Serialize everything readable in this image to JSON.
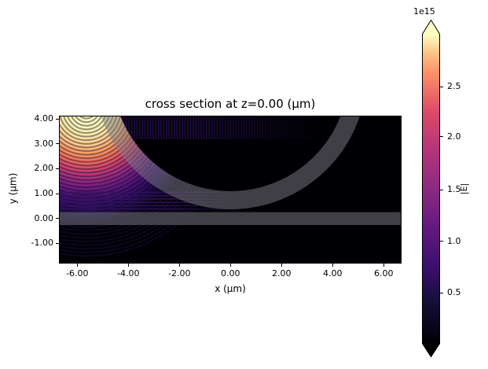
{
  "figure": {
    "background": "#ffffff"
  },
  "title": "cross section at z=0.00 (μm)",
  "axes": {
    "xlabel": "x (μm)",
    "ylabel": "y (μm)",
    "xtick_labels": [
      "-6.00",
      "-4.00",
      "-2.00",
      "0.00",
      "2.00",
      "4.00",
      "6.00"
    ],
    "ytick_labels": [
      "4.00",
      "3.00",
      "2.00",
      "1.00",
      "0.00",
      "-1.00"
    ]
  },
  "colorbar": {
    "offset_label": "1e15",
    "label": "|E|",
    "tick_labels": [
      "2.5",
      "2.0",
      "1.5",
      "1.0",
      "0.5"
    ],
    "colormap": "magma",
    "extend": "both"
  },
  "colors": {
    "background_field": "#000004",
    "structure_overlay_gray": "#3a3a3e",
    "field_peak": "#fcfdbf",
    "field_mid": "#8c2981",
    "field_low": "#140e36"
  },
  "chart_data": {
    "type": "heatmap",
    "title": "cross section at z=0.00 (μm)",
    "xlabel": "x (μm)",
    "ylabel": "y (μm)",
    "xlim": [
      -6.72,
      6.7
    ],
    "ylim": [
      -1.81,
      4.06
    ],
    "xticks": [
      -6.0,
      -4.0,
      -2.0,
      0.0,
      2.0,
      4.0,
      6.0
    ],
    "yticks": [
      4.0,
      3.0,
      2.0,
      1.0,
      0.0,
      -1.0
    ],
    "grid": false,
    "legend": false,
    "value_label": "|E|",
    "colormap": "magma",
    "colorbar": {
      "position": "right",
      "ticks_1e15": [
        0.5,
        1.0,
        1.5,
        2.0,
        2.5
      ],
      "offset_text": "1e15",
      "vmin": 0,
      "vmax": 3000000000000000.0,
      "extend": "both"
    },
    "field_description": "Electric field magnitude |E| on magma colormap; intense radiating source with concentric interference fringes in the upper-left corner (~3e15 peak, saturated cream), decaying through orange/magenta/purple arcs to near-zero (black) across the rest of the domain; faint vertical standing-wave stripes along the top edge inside the ring and faint horizontal stripes just above the slab on the left.",
    "source": {
      "x_um": -5.6,
      "y_um": 4.2,
      "fringe_spacing_um": 0.14,
      "peak_1e15": 3.0
    },
    "structures": [
      {
        "shape": "ring",
        "center_x_um": 0.0,
        "center_y_um": 5.7,
        "inner_radius_um": 4.63,
        "outer_radius_um": 5.34,
        "style": "semi-transparent gray overlay"
      },
      {
        "shape": "slab",
        "y_top_um": 0.26,
        "y_bottom_um": -0.25,
        "x_span": "full width",
        "style": "semi-transparent gray overlay"
      }
    ]
  }
}
